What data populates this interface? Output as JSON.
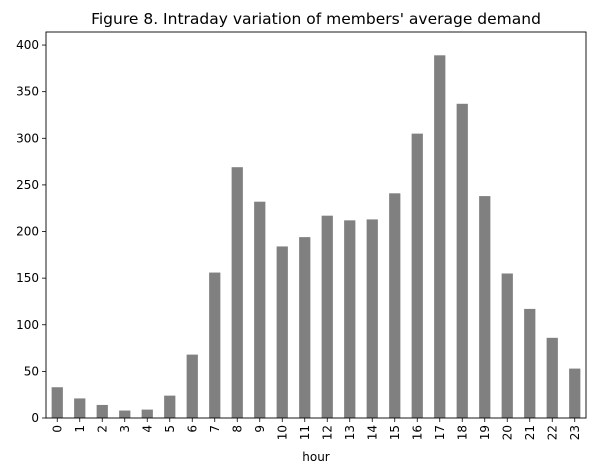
{
  "chart_data": {
    "type": "bar",
    "title": "Figure 8. Intraday variation of members' average demand",
    "xlabel": "hour",
    "ylabel": "",
    "categories": [
      "0",
      "1",
      "2",
      "3",
      "4",
      "5",
      "6",
      "7",
      "8",
      "9",
      "10",
      "11",
      "12",
      "13",
      "14",
      "15",
      "16",
      "17",
      "18",
      "19",
      "20",
      "21",
      "22",
      "23"
    ],
    "values": [
      33,
      21,
      14,
      8,
      9,
      24,
      68,
      156,
      269,
      232,
      184,
      194,
      217,
      212,
      213,
      241,
      305,
      389,
      337,
      238,
      155,
      117,
      86,
      53
    ],
    "yticks": [
      0,
      50,
      100,
      150,
      200,
      250,
      300,
      350,
      400
    ],
    "ylim": [
      0,
      414
    ],
    "bar_color": "#808080",
    "grid": false,
    "legend": "none",
    "xtick_rotation": "vertical"
  }
}
